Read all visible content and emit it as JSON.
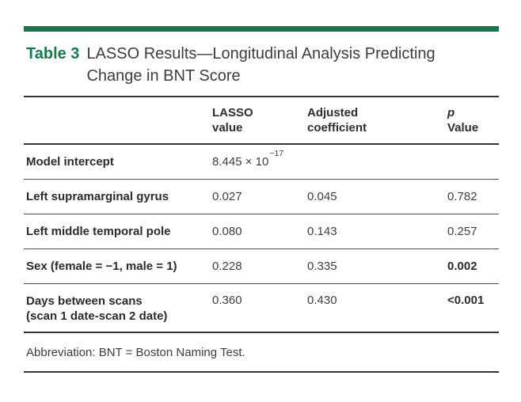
{
  "colors": {
    "accent_green": "#17784e",
    "text_dark": "#2d2d2d"
  },
  "title": {
    "label": "Table 3",
    "line1": "LASSO Results—Longitudinal Analysis Predicting",
    "line2": "Change in BNT Score"
  },
  "table": {
    "columns": {
      "lasso": {
        "line1": "LASSO",
        "line2": "value"
      },
      "adjusted": {
        "line1": "Adjusted",
        "line2": "coefficient"
      },
      "p": {
        "line1": "p",
        "line2": "Value"
      }
    },
    "rows": [
      {
        "label": "Model intercept",
        "lasso_base": "8.445 × 10",
        "lasso_exp": "−17",
        "adjusted": "",
        "p": ""
      },
      {
        "label": "Left supramarginal gyrus",
        "lasso": "0.027",
        "adjusted": "0.045",
        "p": "0.782"
      },
      {
        "label": "Left middle temporal pole",
        "lasso": "0.080",
        "adjusted": "0.143",
        "p": "0.257"
      },
      {
        "label": "Sex (female = −1, male = 1)",
        "lasso": "0.228",
        "adjusted": "0.335",
        "p": "0.002"
      },
      {
        "label_line1": "Days between scans",
        "label_line2": "(scan 1 date-scan 2 date)",
        "lasso": "0.360",
        "adjusted": "0.430",
        "p": "<0.001"
      }
    ]
  },
  "footnote": "Abbreviation: BNT = Boston Naming Test."
}
